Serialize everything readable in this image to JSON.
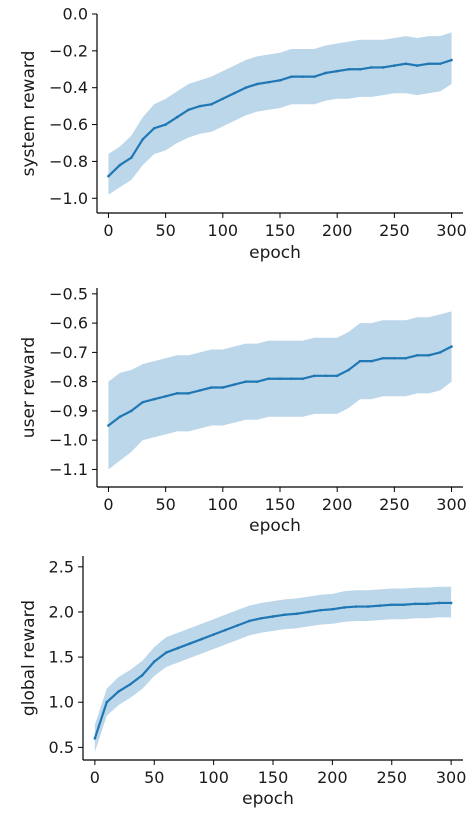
{
  "chart_data": [
    {
      "type": "line",
      "xlabel": "epoch",
      "ylabel": "system reward",
      "xlim": [
        -10,
        310
      ],
      "ylim": [
        -1.08,
        0.0
      ],
      "xticks": [
        0,
        50,
        100,
        150,
        200,
        250,
        300
      ],
      "yticks": [
        0.0,
        -0.2,
        -0.4,
        -0.6,
        -0.8,
        -1.0
      ],
      "ytick_labels": [
        "0.0",
        "−0.2",
        "−0.4",
        "−0.6",
        "−0.8",
        "−1.0"
      ],
      "grid": false,
      "color": "#1f77b4",
      "band_color": "#a6c8e3",
      "series": [
        {
          "x": [
            0,
            10,
            20,
            30,
            40,
            50,
            60,
            70,
            80,
            90,
            100,
            110,
            120,
            130,
            140,
            150,
            160,
            170,
            180,
            190,
            200,
            210,
            220,
            230,
            240,
            250,
            260,
            270,
            280,
            290,
            300
          ],
          "values": [
            -0.88,
            -0.82,
            -0.78,
            -0.68,
            -0.62,
            -0.6,
            -0.56,
            -0.52,
            -0.5,
            -0.49,
            -0.46,
            -0.43,
            -0.4,
            -0.38,
            -0.37,
            -0.36,
            -0.34,
            -0.34,
            -0.34,
            -0.32,
            -0.31,
            -0.3,
            -0.3,
            -0.29,
            -0.29,
            -0.28,
            -0.27,
            -0.28,
            -0.27,
            -0.27,
            -0.25
          ],
          "lower": [
            -0.98,
            -0.94,
            -0.9,
            -0.82,
            -0.76,
            -0.74,
            -0.7,
            -0.67,
            -0.65,
            -0.64,
            -0.61,
            -0.58,
            -0.55,
            -0.53,
            -0.52,
            -0.51,
            -0.49,
            -0.49,
            -0.49,
            -0.47,
            -0.46,
            -0.46,
            -0.45,
            -0.45,
            -0.44,
            -0.43,
            -0.43,
            -0.44,
            -0.43,
            -0.42,
            -0.38
          ],
          "upper": [
            -0.76,
            -0.72,
            -0.66,
            -0.56,
            -0.49,
            -0.46,
            -0.42,
            -0.38,
            -0.36,
            -0.34,
            -0.31,
            -0.28,
            -0.25,
            -0.23,
            -0.22,
            -0.21,
            -0.19,
            -0.19,
            -0.19,
            -0.17,
            -0.16,
            -0.15,
            -0.14,
            -0.14,
            -0.14,
            -0.13,
            -0.12,
            -0.13,
            -0.12,
            -0.12,
            -0.1
          ]
        }
      ]
    },
    {
      "type": "line",
      "xlabel": "epoch",
      "ylabel": "user reward",
      "xlim": [
        -10,
        310
      ],
      "ylim": [
        -1.16,
        -0.48
      ],
      "xticks": [
        0,
        50,
        100,
        150,
        200,
        250,
        300
      ],
      "yticks": [
        -0.5,
        -0.6,
        -0.7,
        -0.8,
        -0.9,
        -1.0,
        -1.1
      ],
      "ytick_labels": [
        "−0.5",
        "−0.6",
        "−0.7",
        "−0.8",
        "−0.9",
        "−1.0",
        "−1.1"
      ],
      "grid": false,
      "color": "#1f77b4",
      "band_color": "#a6c8e3",
      "series": [
        {
          "x": [
            0,
            10,
            20,
            30,
            40,
            50,
            60,
            70,
            80,
            90,
            100,
            110,
            120,
            130,
            140,
            150,
            160,
            170,
            180,
            190,
            200,
            210,
            220,
            230,
            240,
            250,
            260,
            270,
            280,
            290,
            300
          ],
          "values": [
            -0.95,
            -0.92,
            -0.9,
            -0.87,
            -0.86,
            -0.85,
            -0.84,
            -0.84,
            -0.83,
            -0.82,
            -0.82,
            -0.81,
            -0.8,
            -0.8,
            -0.79,
            -0.79,
            -0.79,
            -0.79,
            -0.78,
            -0.78,
            -0.78,
            -0.76,
            -0.73,
            -0.73,
            -0.72,
            -0.72,
            -0.72,
            -0.71,
            -0.71,
            -0.7,
            -0.68
          ],
          "lower": [
            -1.1,
            -1.07,
            -1.04,
            -1.0,
            -0.99,
            -0.98,
            -0.97,
            -0.97,
            -0.96,
            -0.95,
            -0.95,
            -0.94,
            -0.93,
            -0.93,
            -0.92,
            -0.92,
            -0.92,
            -0.92,
            -0.91,
            -0.91,
            -0.91,
            -0.89,
            -0.86,
            -0.86,
            -0.85,
            -0.85,
            -0.85,
            -0.84,
            -0.84,
            -0.83,
            -0.8
          ],
          "upper": [
            -0.8,
            -0.77,
            -0.76,
            -0.74,
            -0.73,
            -0.72,
            -0.71,
            -0.71,
            -0.7,
            -0.69,
            -0.69,
            -0.68,
            -0.67,
            -0.67,
            -0.66,
            -0.66,
            -0.66,
            -0.66,
            -0.65,
            -0.65,
            -0.65,
            -0.63,
            -0.6,
            -0.6,
            -0.59,
            -0.59,
            -0.59,
            -0.58,
            -0.58,
            -0.57,
            -0.56
          ]
        }
      ]
    },
    {
      "type": "line",
      "xlabel": "epoch",
      "ylabel": "global reward",
      "xlim": [
        -10,
        310
      ],
      "ylim": [
        0.36,
        2.62
      ],
      "xticks": [
        0,
        50,
        100,
        150,
        200,
        250,
        300
      ],
      "yticks": [
        0.5,
        1.0,
        1.5,
        2.0,
        2.5
      ],
      "ytick_labels": [
        "0.5",
        "1.0",
        "1.5",
        "2.0",
        "2.5"
      ],
      "grid": false,
      "color": "#1f77b4",
      "band_color": "#a6c8e3",
      "series": [
        {
          "x": [
            0,
            10,
            20,
            30,
            40,
            50,
            60,
            70,
            80,
            90,
            100,
            110,
            120,
            130,
            140,
            150,
            160,
            170,
            180,
            190,
            200,
            210,
            220,
            230,
            240,
            250,
            260,
            270,
            280,
            290,
            300
          ],
          "values": [
            0.6,
            1.0,
            1.12,
            1.2,
            1.3,
            1.45,
            1.55,
            1.6,
            1.65,
            1.7,
            1.75,
            1.8,
            1.85,
            1.9,
            1.93,
            1.95,
            1.97,
            1.98,
            2.0,
            2.02,
            2.03,
            2.05,
            2.06,
            2.06,
            2.07,
            2.08,
            2.08,
            2.09,
            2.09,
            2.1,
            2.1
          ],
          "lower": [
            0.45,
            0.85,
            0.97,
            1.05,
            1.15,
            1.29,
            1.39,
            1.44,
            1.49,
            1.54,
            1.59,
            1.64,
            1.69,
            1.74,
            1.77,
            1.79,
            1.81,
            1.82,
            1.84,
            1.86,
            1.87,
            1.89,
            1.9,
            1.9,
            1.91,
            1.92,
            1.92,
            1.93,
            1.93,
            1.94,
            1.94
          ],
          "upper": [
            0.75,
            1.15,
            1.28,
            1.36,
            1.46,
            1.61,
            1.72,
            1.77,
            1.82,
            1.87,
            1.92,
            1.97,
            2.02,
            2.07,
            2.1,
            2.12,
            2.14,
            2.15,
            2.17,
            2.19,
            2.2,
            2.23,
            2.24,
            2.24,
            2.25,
            2.26,
            2.26,
            2.27,
            2.27,
            2.28,
            2.28
          ]
        }
      ]
    }
  ]
}
